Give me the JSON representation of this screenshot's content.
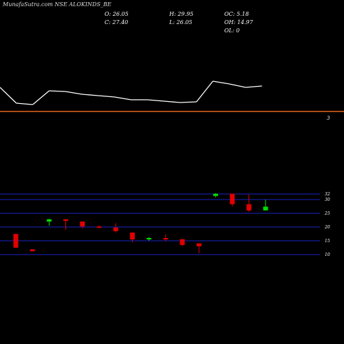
{
  "header": {
    "title": "MunafaSutra.com NSE ALOKINDS_BE",
    "o": "O: 26.05",
    "c": "C: 27.40",
    "h": "H: 29.95",
    "l": "L: 26.05",
    "oc": "OC: 5.18",
    "oh": "OH: 14.97",
    "ol": "OL: 0"
  },
  "volume_panel": {
    "label": "3"
  },
  "colors": {
    "up": "#00e000",
    "down": "#e00000",
    "line": "#ffffff",
    "divider": "#e8641e",
    "grid": "#1a24c8"
  },
  "chart_data": [
    {
      "type": "line",
      "title": "",
      "series": [
        {
          "values": [
            127,
            150,
            152,
            132,
            133,
            137,
            139,
            141,
            145,
            145,
            147,
            149,
            148,
            118,
            122,
            127,
            125
          ]
        }
      ]
    },
    {
      "type": "candlestick",
      "ylim": [
        8,
        34
      ],
      "yticks": [
        32,
        30,
        25,
        20,
        15,
        10
      ],
      "candles": [
        {
          "o": 17.5,
          "h": 17.5,
          "l": 12.5,
          "c": 12.5
        },
        {
          "o": 11.9,
          "h": 11.9,
          "l": 11.2,
          "c": 11.2
        },
        {
          "o": 22.0,
          "h": 23.0,
          "l": 20.5,
          "c": 22.8
        },
        {
          "o": 22.8,
          "h": 22.8,
          "l": 19.0,
          "c": 22.2
        },
        {
          "o": 22.0,
          "h": 22.0,
          "l": 19.5,
          "c": 20.2
        },
        {
          "o": 20.2,
          "h": 20.6,
          "l": 19.8,
          "c": 19.8
        },
        {
          "o": 19.8,
          "h": 21.4,
          "l": 18.0,
          "c": 18.5
        },
        {
          "o": 18.0,
          "h": 18.0,
          "l": 14.5,
          "c": 15.5
        },
        {
          "o": 15.6,
          "h": 16.4,
          "l": 15.0,
          "c": 16.0
        },
        {
          "o": 16.0,
          "h": 17.4,
          "l": 14.8,
          "c": 15.6
        },
        {
          "o": 15.6,
          "h": 15.6,
          "l": 13.0,
          "c": 13.5
        },
        {
          "o": 14.1,
          "h": 14.1,
          "l": 10.5,
          "c": 13.0
        },
        {
          "o": 31.3,
          "h": 32.3,
          "l": 30.8,
          "c": 32.1
        },
        {
          "o": 32.1,
          "h": 32.1,
          "l": 27.5,
          "c": 28.3
        },
        {
          "o": 28.3,
          "h": 31.8,
          "l": 25.5,
          "c": 26.0
        },
        {
          "o": 26.05,
          "h": 29.95,
          "l": 26.05,
          "c": 27.4
        }
      ]
    }
  ]
}
